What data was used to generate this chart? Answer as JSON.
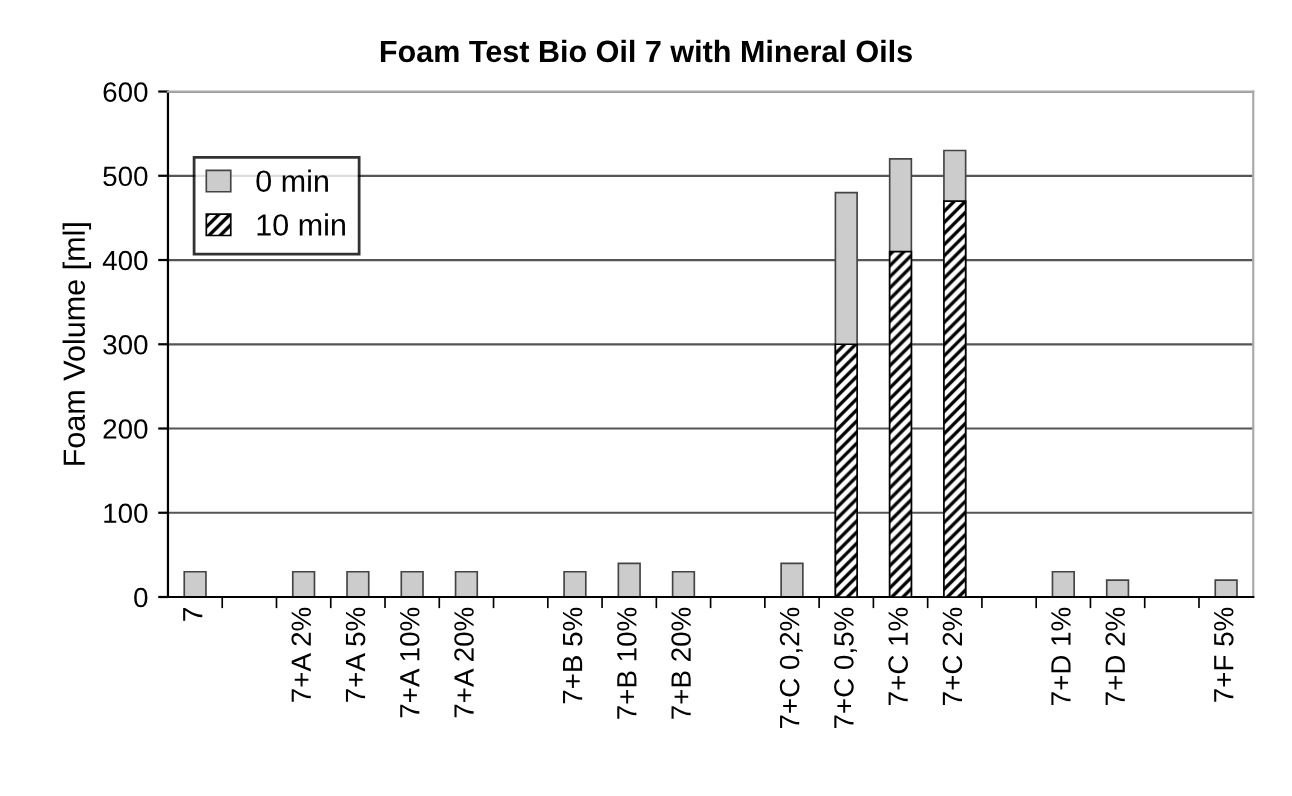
{
  "chart_data": {
    "type": "bar",
    "title": "Foam Test Bio Oil 7 with Mineral Oils",
    "ylabel": "Foam Volume [ml]",
    "categories": [
      "7",
      null,
      "7+A 2%",
      "7+A 5%",
      "7+A 10%",
      "7+A 20%",
      null,
      "7+B 5%",
      "7+B 10%",
      "7+B 20%",
      null,
      "7+C 0,2%",
      "7+C 0,5%",
      "7+C 1%",
      "7+C 2%",
      null,
      "7+D 1%",
      "7+D 2%",
      null,
      "7+F 5%"
    ],
    "series": [
      {
        "name": "0 min",
        "color": "#cccccc",
        "values": [
          30,
          null,
          30,
          30,
          30,
          30,
          null,
          30,
          40,
          30,
          null,
          40,
          480,
          520,
          530,
          null,
          30,
          20,
          null,
          20
        ]
      },
      {
        "name": "10 min",
        "color": "#000000",
        "values": [
          null,
          null,
          null,
          null,
          null,
          null,
          null,
          null,
          null,
          null,
          null,
          null,
          300,
          410,
          470,
          null,
          null,
          null,
          null,
          null
        ]
      }
    ],
    "ylim": [
      0,
      600
    ],
    "yticks": [
      0,
      100,
      200,
      300,
      400,
      500,
      600
    ],
    "grid": "y",
    "legend": "top left"
  }
}
